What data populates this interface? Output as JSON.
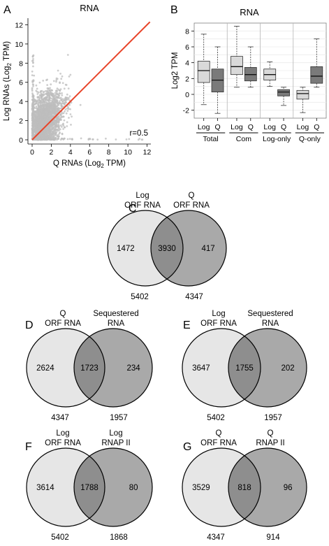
{
  "panels": {
    "A": "A",
    "B": "B",
    "C": "C",
    "D": "D",
    "E": "E",
    "F": "F",
    "G": "G"
  },
  "colors": {
    "scatter_points": "#bdbdbd",
    "fit_line": "#e8452a",
    "box_light": "#d9d9d9",
    "box_dark": "#7a7a7a",
    "venn_left": "#e6e6e6",
    "venn_right": "#a9a9a9",
    "venn_overlap": "#8e8e8e"
  },
  "chart_data": [
    {
      "panel": "A",
      "type": "scatter",
      "title": "RNA",
      "xlabel_main": "Q RNAs (Log",
      "xlabel_sub": "2",
      "xlabel_end": " TPM)",
      "ylabel_main": "Log RNAs (Log",
      "ylabel_sub": "2",
      "ylabel_end": " TPM)",
      "xlim": [
        0,
        12.4
      ],
      "ylim": [
        0,
        12.4
      ],
      "xticks": [
        "0",
        "2",
        "4",
        "6",
        "8",
        "10",
        "12"
      ],
      "yticks": [
        "0",
        "2",
        "4",
        "6",
        "8",
        "10",
        "12"
      ],
      "annotation": "r=0.5",
      "fit_line": [
        [
          0,
          0
        ],
        [
          12.3,
          12.3
        ]
      ],
      "point_cloud_note_free": true
    },
    {
      "panel": "B",
      "type": "box",
      "title": "RNA",
      "ylabel": "Log2 TPM",
      "ylim": [
        -3,
        9
      ],
      "yticks": [
        "-2",
        "0",
        "2",
        "4",
        "6",
        "8"
      ],
      "groups": [
        "Total",
        "Com",
        "Log-only",
        "Q-only"
      ],
      "box_labels": [
        "Log",
        "Q"
      ],
      "boxes": [
        {
          "group": "Total",
          "label": "Log",
          "shade": "light",
          "min": -1.3,
          "q1": 1.5,
          "median": 3.0,
          "q3": 4.2,
          "max": 7.6
        },
        {
          "group": "Total",
          "label": "Q",
          "shade": "dark",
          "min": -2.4,
          "q1": 0.3,
          "median": 1.8,
          "q3": 3.2,
          "max": 6.0
        },
        {
          "group": "Com",
          "label": "Log",
          "shade": "light",
          "min": 0.9,
          "q1": 2.5,
          "median": 3.5,
          "q3": 4.8,
          "max": 8.6
        },
        {
          "group": "Com",
          "label": "Q",
          "shade": "dark",
          "min": 0.9,
          "q1": 1.7,
          "median": 2.5,
          "q3": 3.4,
          "max": 6.0
        },
        {
          "group": "Log-only",
          "label": "Log",
          "shade": "light",
          "min": 1.0,
          "q1": 1.8,
          "median": 2.5,
          "q3": 3.2,
          "max": 4.1
        },
        {
          "group": "Log-only",
          "label": "Q",
          "shade": "dark",
          "min": -1.4,
          "q1": -0.2,
          "median": 0.3,
          "q3": 0.6,
          "max": 0.9
        },
        {
          "group": "Q-only",
          "label": "Log",
          "shade": "light",
          "min": -2.3,
          "q1": -0.6,
          "median": 0.1,
          "q3": 0.5,
          "max": 0.9
        },
        {
          "group": "Q-only",
          "label": "Q",
          "shade": "dark",
          "min": 0.9,
          "q1": 1.4,
          "median": 2.3,
          "q3": 3.5,
          "max": 7.0
        }
      ]
    },
    {
      "panel": "C",
      "type": "venn",
      "left_label": [
        "Log",
        "ORF RNA"
      ],
      "right_label": [
        "Q",
        "ORF RNA"
      ],
      "left_only": "1472",
      "overlap": "3930",
      "right_only": "417",
      "left_total": "5402",
      "right_total": "4347"
    },
    {
      "panel": "D",
      "type": "venn",
      "left_label": [
        "Q",
        "ORF RNA"
      ],
      "right_label": [
        "Sequestered",
        "RNA"
      ],
      "left_only": "2624",
      "overlap": "1723",
      "right_only": "234",
      "left_total": "4347",
      "right_total": "1957"
    },
    {
      "panel": "E",
      "type": "venn",
      "left_label": [
        "Log",
        "ORF RNA"
      ],
      "right_label": [
        "Sequestered",
        "RNA"
      ],
      "left_only": "3647",
      "overlap": "1755",
      "right_only": "202",
      "left_total": "5402",
      "right_total": "1957"
    },
    {
      "panel": "F",
      "type": "venn",
      "left_label": [
        "Log",
        "ORF RNA"
      ],
      "right_label": [
        "Log",
        "RNAP II"
      ],
      "left_only": "3614",
      "overlap": "1788",
      "right_only": "80",
      "left_total": "5402",
      "right_total": "1868"
    },
    {
      "panel": "G",
      "type": "venn",
      "left_label": [
        "Q",
        "ORF RNA"
      ],
      "right_label": [
        "Q",
        "RNAP II"
      ],
      "left_only": "3529",
      "overlap": "818",
      "right_only": "96",
      "left_total": "4347",
      "right_total": "914"
    }
  ]
}
